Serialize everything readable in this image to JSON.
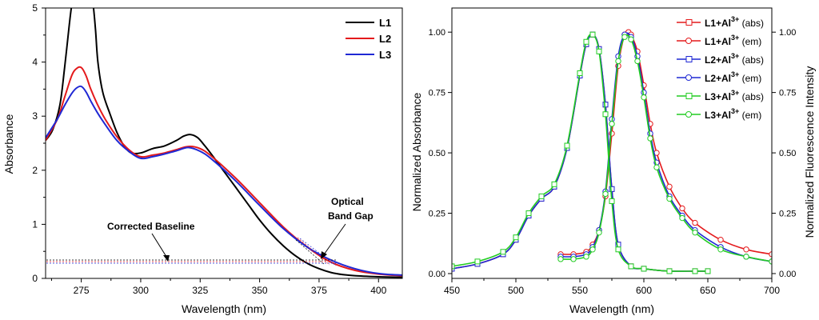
{
  "chart_data": [
    {
      "type": "line",
      "xlabel": "Wavelength (nm)",
      "ylabel": "Absorbance",
      "xlim": [
        260,
        410
      ],
      "ylim": [
        0,
        5
      ],
      "xticks": [
        275,
        300,
        325,
        350,
        375,
        400
      ],
      "yticks": [
        0,
        1,
        2,
        3,
        4,
        5
      ],
      "legend_position": "top-right",
      "series": [
        {
          "name": "L1",
          "color": "#000000",
          "x": [
            260,
            263,
            266,
            268,
            270,
            271,
            272,
            274,
            276,
            278,
            279,
            280,
            281,
            282,
            284,
            287,
            290,
            293,
            296,
            300,
            305,
            310,
            315,
            318,
            321,
            324,
            327,
            330,
            335,
            340,
            345,
            350,
            355,
            360,
            365,
            370,
            375,
            380,
            385,
            390,
            400,
            410
          ],
          "y": [
            2.55,
            2.75,
            3.2,
            3.9,
            4.7,
            5.05,
            5.2,
            5.2,
            5.2,
            5.2,
            5.2,
            5.05,
            4.6,
            4.0,
            3.45,
            3.05,
            2.7,
            2.45,
            2.32,
            2.32,
            2.4,
            2.45,
            2.55,
            2.63,
            2.66,
            2.6,
            2.45,
            2.28,
            1.98,
            1.68,
            1.38,
            1.08,
            0.82,
            0.6,
            0.42,
            0.28,
            0.18,
            0.11,
            0.07,
            0.05,
            0.03,
            0.02
          ]
        },
        {
          "name": "L2",
          "color": "#e41a1c",
          "x": [
            260,
            265,
            268,
            271,
            273,
            275,
            277,
            279,
            282,
            285,
            290,
            295,
            300,
            305,
            310,
            315,
            320,
            325,
            330,
            340,
            350,
            360,
            370,
            380,
            390,
            400,
            410
          ],
          "y": [
            2.55,
            2.95,
            3.35,
            3.75,
            3.88,
            3.9,
            3.75,
            3.5,
            3.2,
            2.95,
            2.62,
            2.38,
            2.25,
            2.28,
            2.32,
            2.38,
            2.44,
            2.4,
            2.25,
            1.85,
            1.4,
            0.95,
            0.58,
            0.3,
            0.15,
            0.08,
            0.05
          ]
        },
        {
          "name": "L3",
          "color": "#1f28d4",
          "x": [
            260,
            265,
            268,
            271,
            273,
            275,
            277,
            279,
            282,
            285,
            290,
            295,
            300,
            305,
            310,
            315,
            320,
            325,
            330,
            340,
            350,
            360,
            370,
            380,
            390,
            400,
            410
          ],
          "y": [
            2.6,
            2.95,
            3.2,
            3.42,
            3.52,
            3.55,
            3.45,
            3.28,
            3.05,
            2.85,
            2.55,
            2.35,
            2.22,
            2.25,
            2.3,
            2.36,
            2.42,
            2.35,
            2.2,
            1.8,
            1.35,
            0.92,
            0.58,
            0.34,
            0.18,
            0.09,
            0.06
          ]
        }
      ],
      "annotations": [
        "Corrected Baseline",
        "Optical",
        "Band Gap"
      ]
    },
    {
      "type": "line",
      "xlabel": "Wavelength (nm)",
      "ylabel_left": "Normalized Absorbance",
      "ylabel_right": "Normalized Fluorescence Intensity",
      "xlim": [
        450,
        700
      ],
      "ylim": [
        -0.02,
        1.1
      ],
      "xticks": [
        450,
        500,
        550,
        600,
        650,
        700
      ],
      "yticks_left": [
        "0.00",
        "0.25",
        "0.50",
        "0.75",
        "1.00"
      ],
      "yticks_right": [
        "0.00",
        "0.25",
        "0.50",
        "0.75",
        "1.00"
      ],
      "legend_position": "top-right",
      "series": [
        {
          "name": "L1+Al3+ (abs)",
          "legend_base": "L1+Al",
          "legend_sup": "3+",
          "legend_tail": " (abs)",
          "color": "#e41a1c",
          "marker": "square",
          "x": [
            450,
            470,
            490,
            500,
            510,
            520,
            530,
            540,
            550,
            555,
            560,
            565,
            570,
            575,
            580,
            590,
            600,
            620,
            640,
            650
          ],
          "y": [
            0.02,
            0.04,
            0.08,
            0.14,
            0.24,
            0.31,
            0.36,
            0.52,
            0.82,
            0.95,
            0.99,
            0.93,
            0.7,
            0.35,
            0.12,
            0.03,
            0.02,
            0.01,
            0.01,
            0.01
          ]
        },
        {
          "name": "L1+Al3+ (em)",
          "legend_base": "L1+Al",
          "legend_sup": "3+",
          "legend_tail": " (em)",
          "color": "#e41a1c",
          "marker": "circle",
          "x": [
            535,
            545,
            555,
            560,
            565,
            570,
            575,
            580,
            585,
            588,
            590,
            595,
            600,
            605,
            610,
            620,
            630,
            640,
            660,
            680,
            700
          ],
          "y": [
            0.08,
            0.08,
            0.09,
            0.12,
            0.18,
            0.32,
            0.58,
            0.86,
            0.99,
            1.0,
            0.99,
            0.92,
            0.78,
            0.62,
            0.5,
            0.36,
            0.27,
            0.21,
            0.14,
            0.1,
            0.08
          ]
        },
        {
          "name": "L2+Al3+ (abs)",
          "legend_base": "L2+Al",
          "legend_sup": "3+",
          "legend_tail": " (abs)",
          "color": "#1f28d4",
          "marker": "square",
          "x": [
            450,
            470,
            490,
            500,
            510,
            520,
            530,
            540,
            550,
            555,
            560,
            565,
            570,
            575,
            580,
            590,
            600,
            620,
            640,
            650
          ],
          "y": [
            0.02,
            0.04,
            0.08,
            0.14,
            0.24,
            0.31,
            0.36,
            0.52,
            0.82,
            0.95,
            0.99,
            0.93,
            0.7,
            0.35,
            0.12,
            0.03,
            0.02,
            0.01,
            0.01,
            0.01
          ]
        },
        {
          "name": "L2+Al3+ (em)",
          "legend_base": "L2+Al",
          "legend_sup": "3+",
          "legend_tail": " (em)",
          "color": "#1f28d4",
          "marker": "circle",
          "x": [
            535,
            545,
            555,
            560,
            565,
            570,
            575,
            580,
            585,
            590,
            595,
            600,
            605,
            610,
            620,
            630,
            640,
            660,
            680,
            700
          ],
          "y": [
            0.07,
            0.07,
            0.08,
            0.11,
            0.18,
            0.34,
            0.64,
            0.9,
            0.99,
            0.98,
            0.9,
            0.75,
            0.58,
            0.46,
            0.32,
            0.24,
            0.18,
            0.11,
            0.07,
            0.05
          ]
        },
        {
          "name": "L3+Al3+ (abs)",
          "legend_base": "L3+Al",
          "legend_sup": "3+",
          "legend_tail": " (abs)",
          "color": "#22cc22",
          "marker": "square",
          "x": [
            450,
            470,
            490,
            500,
            510,
            520,
            530,
            540,
            550,
            555,
            560,
            565,
            570,
            575,
            580,
            590,
            600,
            620,
            640,
            650
          ],
          "y": [
            0.03,
            0.05,
            0.09,
            0.15,
            0.25,
            0.32,
            0.37,
            0.53,
            0.83,
            0.96,
            0.99,
            0.92,
            0.66,
            0.3,
            0.1,
            0.03,
            0.02,
            0.01,
            0.01,
            0.01
          ]
        },
        {
          "name": "L3+Al3+ (em)",
          "legend_base": "L3+Al",
          "legend_sup": "3+",
          "legend_tail": " (em)",
          "color": "#22cc22",
          "marker": "circle",
          "x": [
            535,
            545,
            555,
            560,
            565,
            570,
            575,
            580,
            585,
            590,
            595,
            600,
            605,
            610,
            620,
            630,
            640,
            660,
            680,
            700
          ],
          "y": [
            0.06,
            0.06,
            0.07,
            0.1,
            0.17,
            0.33,
            0.62,
            0.88,
            0.98,
            0.97,
            0.88,
            0.73,
            0.56,
            0.44,
            0.31,
            0.23,
            0.17,
            0.1,
            0.07,
            0.05
          ]
        }
      ]
    }
  ]
}
